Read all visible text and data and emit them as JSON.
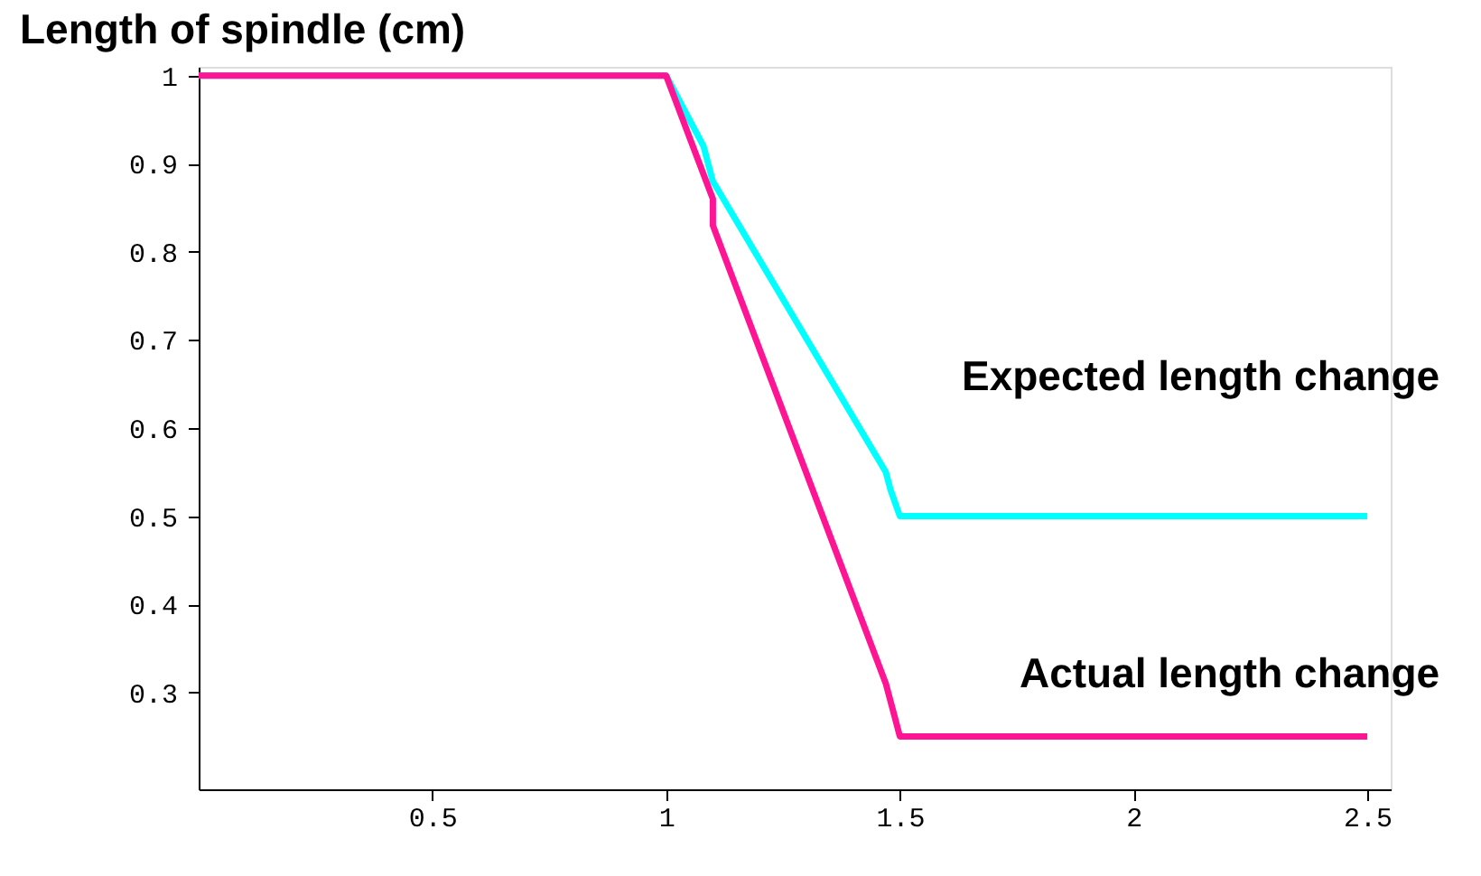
{
  "chart_data": {
    "type": "line",
    "title": "Length of spindle (cm)",
    "xlim": [
      0,
      2.55
    ],
    "xticks": [
      0.5,
      1,
      1.5,
      2,
      2.5
    ],
    "ylim": [
      0.19,
      1.01
    ],
    "yticks": [
      0.3,
      0.4,
      0.5,
      0.6,
      0.7,
      0.8,
      0.9,
      1
    ],
    "grid": false,
    "legend": false,
    "marker": "none",
    "line_style": "solid",
    "series": [
      {
        "name": "Expected length change",
        "color": "#00ffff",
        "x": [
          0,
          1,
          1.08,
          1.1,
          1.47,
          1.48,
          1.5,
          2.5
        ],
        "values": [
          1,
          1,
          0.92,
          0.88,
          0.55,
          0.53,
          0.5,
          0.5
        ]
      },
      {
        "name": "Actual length change",
        "color": "#ff1493",
        "x": [
          0,
          1,
          1.1,
          1.1,
          1.47,
          1.48,
          1.5,
          2.5
        ],
        "values": [
          1,
          1,
          0.86,
          0.83,
          0.31,
          0.29,
          0.25,
          0.25
        ]
      }
    ]
  }
}
